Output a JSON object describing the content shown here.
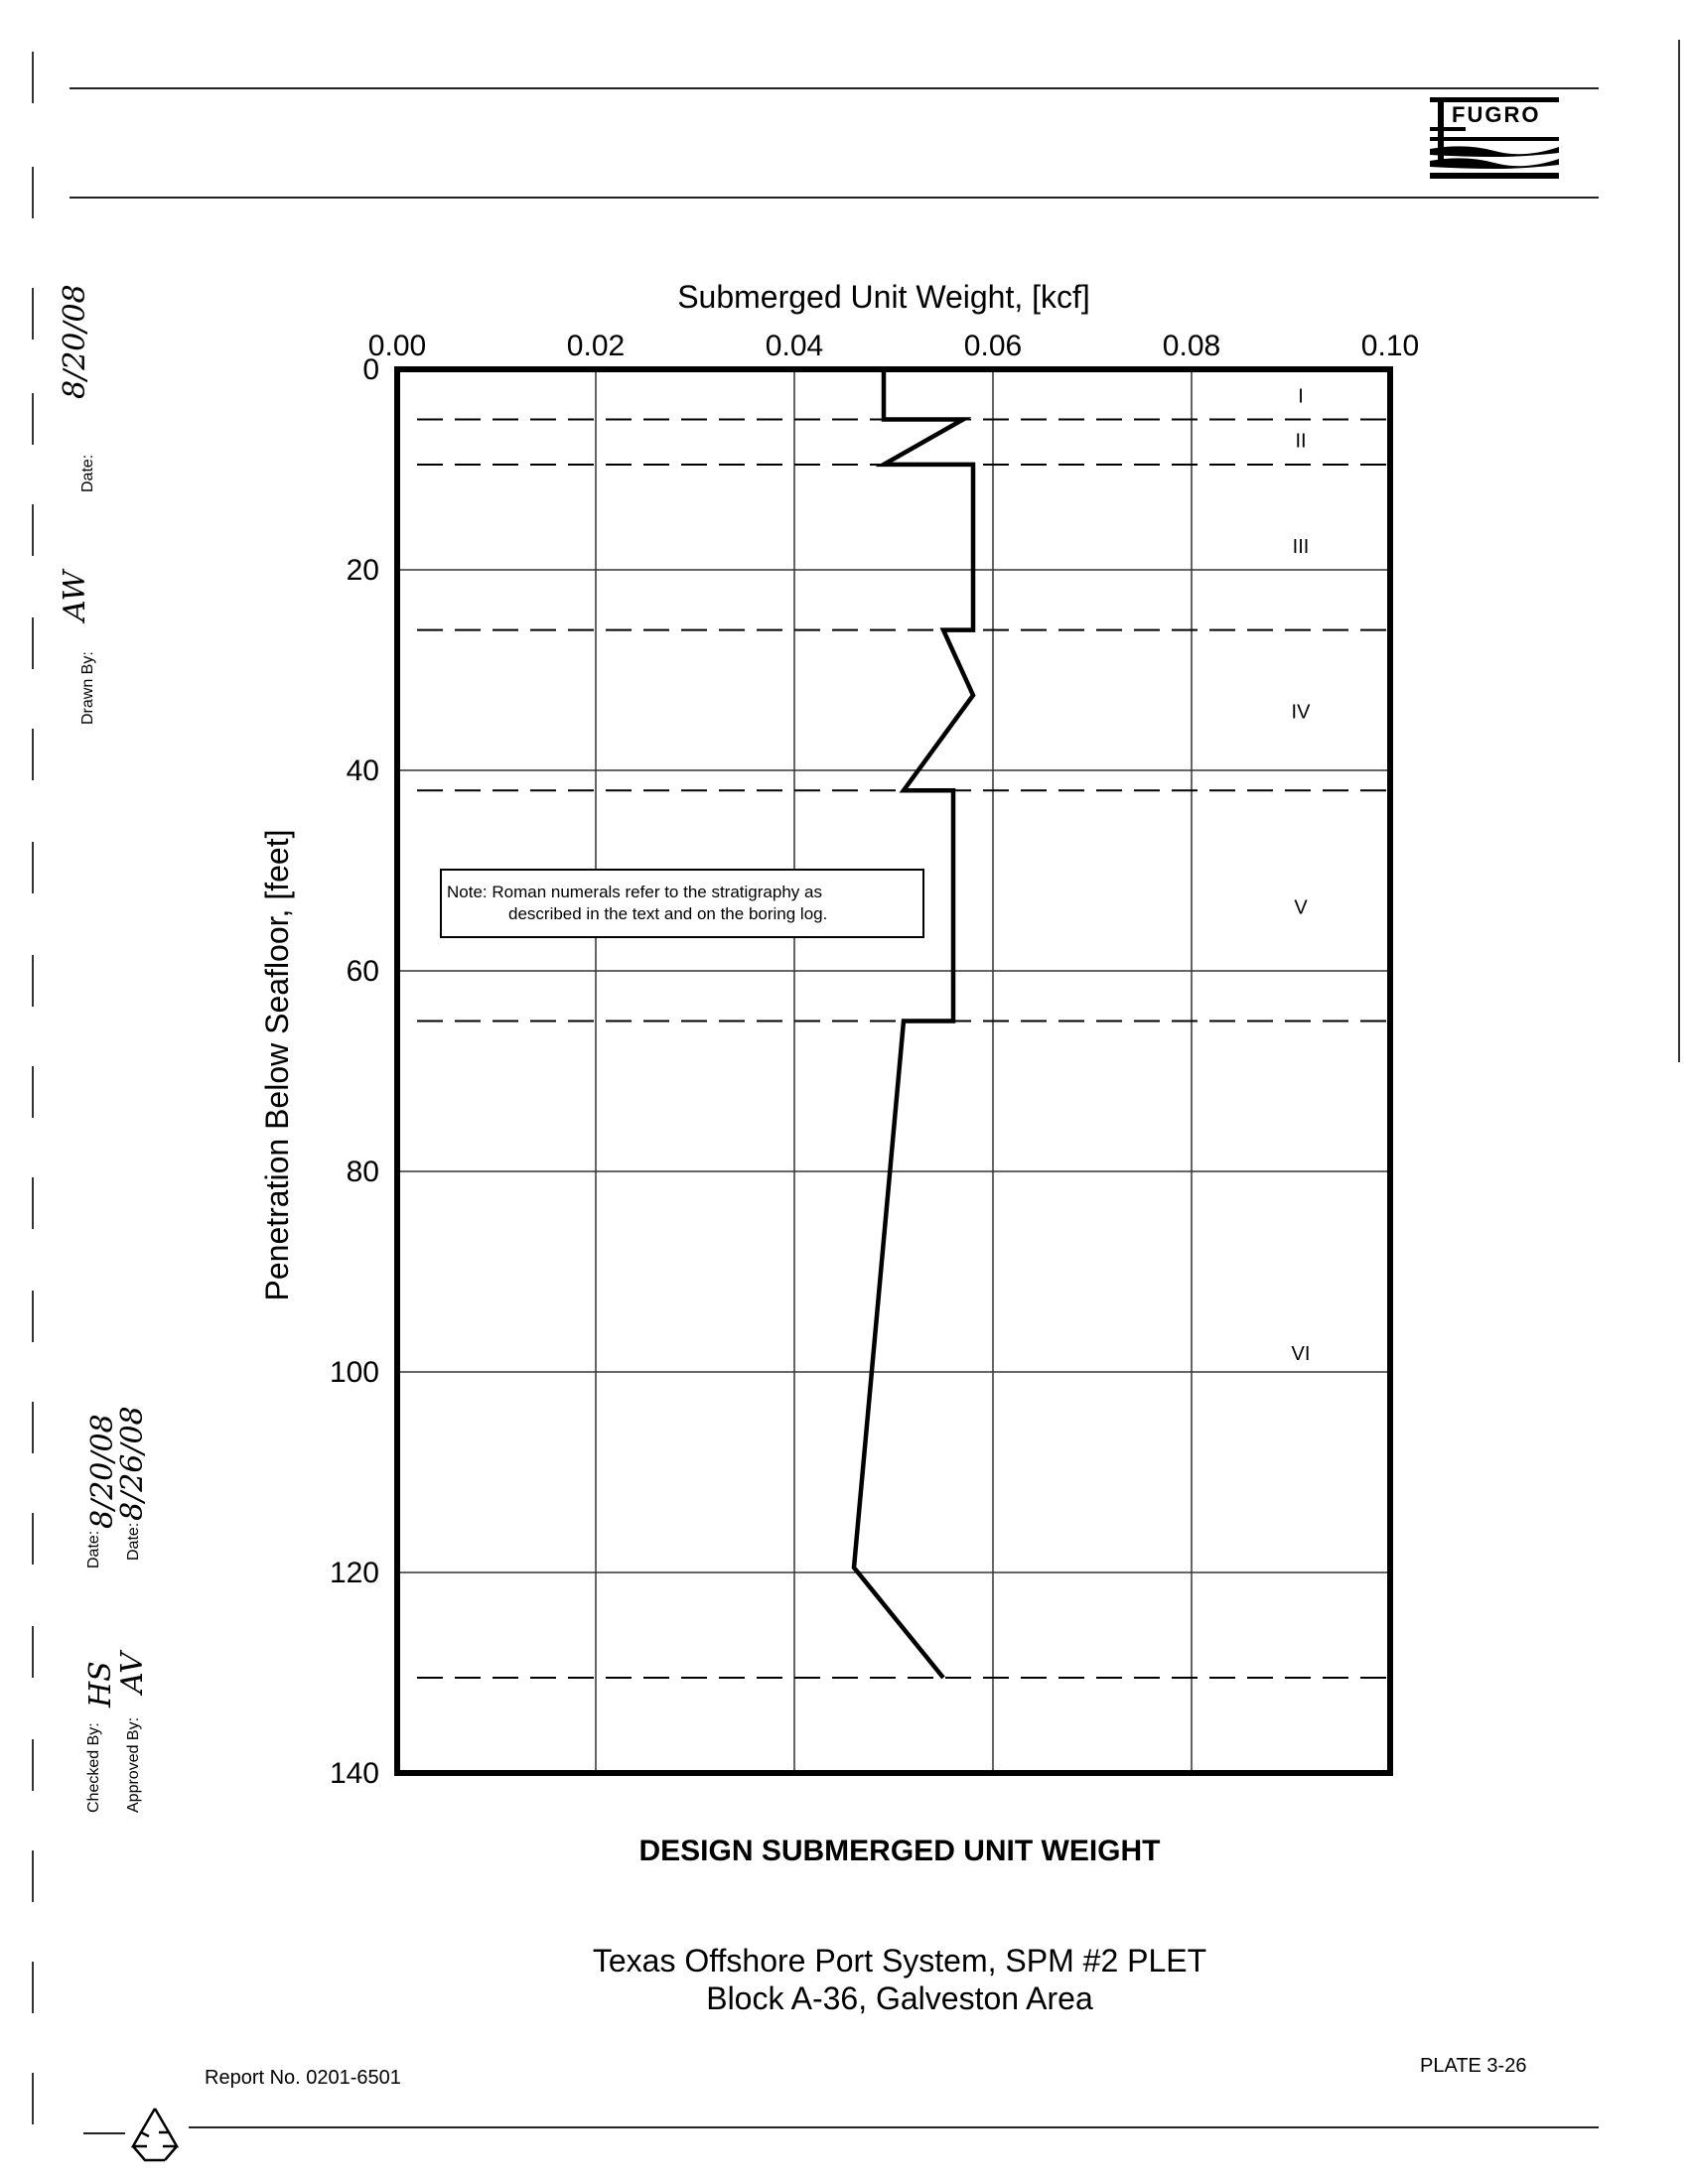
{
  "header": {
    "logo_text": "FUGRO"
  },
  "sidebar": {
    "date_label": "Date:",
    "date_value": "8/20/08",
    "drawn_by_label": "Drawn By:",
    "drawn_by_value": "AW",
    "checked_by_label": "Checked By:",
    "checked_by_value": "HS",
    "checked_date_label": "Date:",
    "checked_date_value": "8/20/08",
    "approved_by_label": "Approved By:",
    "approved_by_value": "AV",
    "approved_date_label": "Date:",
    "approved_date_value": "8/26/08"
  },
  "chart_data": {
    "type": "line",
    "xlabel": "Submerged Unit Weight, [kcf]",
    "ylabel": "Penetration Below Seafloor, [feet]",
    "xlim": [
      0.0,
      0.1
    ],
    "ylim": [
      0,
      140
    ],
    "y_inverted": true,
    "x_axis_position": "top",
    "grid": true,
    "x_ticks": [
      "0.00",
      "0.02",
      "0.04",
      "0.06",
      "0.08",
      "0.10"
    ],
    "y_ticks": [
      "0",
      "20",
      "40",
      "60",
      "80",
      "100",
      "120",
      "140"
    ],
    "x_tick_values": [
      0.0,
      0.02,
      0.04,
      0.06,
      0.08,
      0.1
    ],
    "y_tick_values": [
      0,
      20,
      40,
      60,
      80,
      100,
      120,
      140
    ],
    "series": [
      {
        "x": [
          0.049,
          0.049,
          0.057,
          0.049,
          0.058,
          0.058,
          0.055,
          0.058,
          0.051,
          0.056,
          0.056,
          0.051,
          0.046,
          0.055
        ],
        "y": [
          0,
          5,
          5,
          9.5,
          9.5,
          26,
          26,
          32.5,
          42,
          42,
          65,
          65,
          119.5,
          130.5
        ]
      }
    ],
    "layer_boundaries": [
      5,
      9.5,
      26,
      42,
      65,
      130.5
    ],
    "layers": [
      {
        "label": "I",
        "y": 2.5
      },
      {
        "label": "II",
        "y": 7
      },
      {
        "label": "III",
        "y": 17.5
      },
      {
        "label": "IV",
        "y": 34
      },
      {
        "label": "V",
        "y": 53.5
      },
      {
        "label": "VI",
        "y": 98
      }
    ],
    "note_line1": "Note:  Roman numerals refer to the stratigraphy as",
    "note_line2": "described in the text and on the boring log."
  },
  "title": "DESIGN SUBMERGED UNIT WEIGHT",
  "subtitle_line1": "Texas Offshore Port System, SPM #2 PLET",
  "subtitle_line2": "Block A-36, Galveston Area",
  "footer": {
    "report_no": "Report No. 0201-6501",
    "plate": "PLATE 3-26"
  }
}
